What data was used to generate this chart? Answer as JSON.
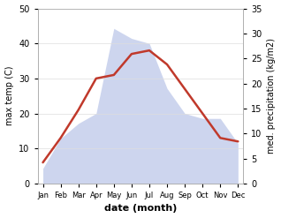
{
  "months": [
    "Jan",
    "Feb",
    "Mar",
    "Apr",
    "May",
    "Jun",
    "Jul",
    "Aug",
    "Sep",
    "Oct",
    "Nov",
    "Dec"
  ],
  "temperature": [
    6,
    13,
    21,
    30,
    31,
    37,
    38,
    34,
    27,
    20,
    13,
    12
  ],
  "precipitation": [
    3,
    9,
    12,
    14,
    31,
    29,
    28,
    19,
    14,
    13,
    13,
    8
  ],
  "temp_color": "#c0392b",
  "precip_color": "#b8c4e8",
  "temp_ylim": [
    0,
    50
  ],
  "precip_ylim": [
    0,
    35
  ],
  "ylabel_left": "max temp (C)",
  "ylabel_right": "med. precipitation (kg/m2)",
  "xlabel": "date (month)",
  "plot_bg_color": "#ffffff",
  "left_yticks": [
    0,
    10,
    20,
    30,
    40,
    50
  ],
  "right_yticks": [
    0,
    5,
    10,
    15,
    20,
    25,
    30,
    35
  ]
}
